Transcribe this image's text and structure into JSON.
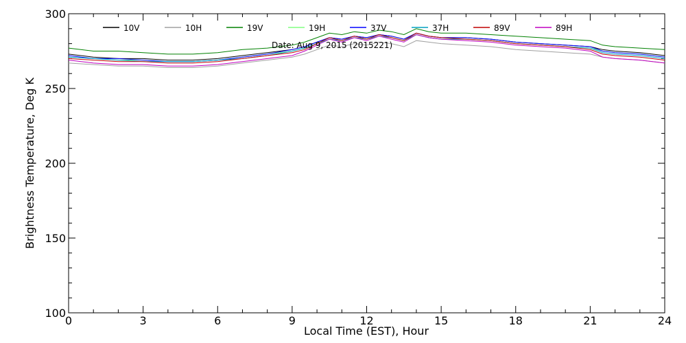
{
  "chart_data": {
    "type": "line",
    "annotation": "Date: Aug 9, 2015 (2015221)",
    "xlabel": "Local Time (EST), Hour",
    "ylabel": "Brightness Temperature, Deg K",
    "xlim": [
      0,
      24
    ],
    "ylim": [
      100,
      300
    ],
    "xticks": [
      0,
      3,
      6,
      9,
      12,
      15,
      18,
      21,
      24
    ],
    "yticks": [
      100,
      150,
      200,
      250,
      300
    ],
    "grid": false,
    "legend_position": "top",
    "x": [
      0,
      1,
      2,
      3,
      4,
      5,
      6,
      7,
      8,
      9,
      9.5,
      10,
      10.5,
      11,
      11.5,
      12,
      12.5,
      13,
      13.5,
      14,
      14.5,
      15,
      16,
      17,
      18,
      19,
      20,
      21,
      21.5,
      22,
      23,
      24
    ],
    "series": [
      {
        "name": "10V",
        "color": "#000000",
        "values": [
          273,
          271,
          270,
          270,
          269,
          269,
          270,
          272,
          274,
          276,
          278,
          281,
          284,
          283,
          285,
          284,
          286,
          285,
          283,
          287,
          285,
          284,
          284,
          283,
          281,
          280,
          279,
          278,
          276,
          275,
          274,
          272
        ]
      },
      {
        "name": "10H",
        "color": "#a0a0a0",
        "values": [
          267,
          266,
          265,
          265,
          264,
          264,
          265,
          267,
          269,
          271,
          273,
          276,
          279,
          278,
          280,
          279,
          281,
          280,
          278,
          282,
          281,
          280,
          279,
          278,
          276,
          275,
          274,
          273,
          271,
          270,
          269,
          267
        ]
      },
      {
        "name": "19V",
        "color": "#008000",
        "values": [
          277,
          275,
          275,
          274,
          273,
          273,
          274,
          276,
          277,
          279,
          281,
          284,
          287,
          286,
          288,
          287,
          289,
          288,
          286,
          290,
          288,
          287,
          287,
          286,
          285,
          284,
          283,
          282,
          279,
          278,
          277,
          276
        ]
      },
      {
        "name": "19H",
        "color": "#80ff80",
        "values": [
          271,
          270,
          269,
          269,
          268,
          268,
          269,
          271,
          273,
          275,
          277,
          280,
          283,
          282,
          284,
          283,
          285,
          284,
          282,
          286,
          284,
          283,
          283,
          282,
          280,
          279,
          278,
          277,
          275,
          274,
          273,
          271
        ]
      },
      {
        "name": "37V",
        "color": "#0000ff",
        "values": [
          272,
          270,
          270,
          269,
          268,
          268,
          269,
          271,
          273,
          276,
          278,
          281,
          284,
          283,
          285,
          284,
          286,
          285,
          283,
          287,
          285,
          284,
          284,
          283,
          281,
          280,
          279,
          278,
          275,
          274,
          273,
          271
        ]
      },
      {
        "name": "37H",
        "color": "#00a0c0",
        "values": [
          271,
          270,
          269,
          268,
          268,
          268,
          269,
          270,
          272,
          275,
          277,
          280,
          283,
          282,
          284,
          283,
          285,
          284,
          282,
          286,
          284,
          283,
          283,
          282,
          280,
          279,
          278,
          277,
          274,
          273,
          272,
          270
        ]
      },
      {
        "name": "89V",
        "color": "#c00000",
        "values": [
          270,
          269,
          268,
          268,
          267,
          267,
          268,
          270,
          272,
          274,
          276,
          280,
          284,
          282,
          285,
          283,
          286,
          284,
          282,
          287,
          285,
          284,
          283,
          282,
          280,
          279,
          278,
          276,
          273,
          272,
          271,
          269
        ]
      },
      {
        "name": "89H",
        "color": "#c000c0",
        "values": [
          269,
          267,
          266,
          266,
          265,
          265,
          266,
          268,
          270,
          272,
          275,
          279,
          283,
          281,
          284,
          282,
          285,
          283,
          281,
          286,
          284,
          283,
          282,
          281,
          279,
          278,
          277,
          275,
          271,
          270,
          269,
          267
        ]
      }
    ]
  }
}
